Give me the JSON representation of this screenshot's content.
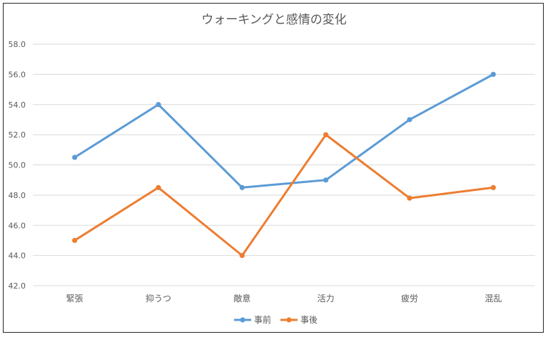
{
  "chart_data": {
    "type": "line",
    "title": "ウォーキングと感情の変化",
    "categories": [
      "緊張",
      "抑うつ",
      "敵意",
      "活力",
      "疲労",
      "混乱"
    ],
    "series": [
      {
        "name": "事前",
        "values": [
          50.5,
          54.0,
          48.5,
          49.0,
          53.0,
          56.0
        ],
        "color": "#5B9BD5"
      },
      {
        "name": "事後",
        "values": [
          45.0,
          48.5,
          44.0,
          52.0,
          47.8,
          48.5
        ],
        "color": "#ED7D31"
      }
    ],
    "ylim": [
      42.0,
      58.0
    ],
    "yticks": [
      "42.0",
      "44.0",
      "46.0",
      "48.0",
      "50.0",
      "52.0",
      "54.0",
      "56.0",
      "58.0"
    ],
    "grid": true,
    "legend_position": "bottom",
    "xlabel": "",
    "ylabel": ""
  }
}
